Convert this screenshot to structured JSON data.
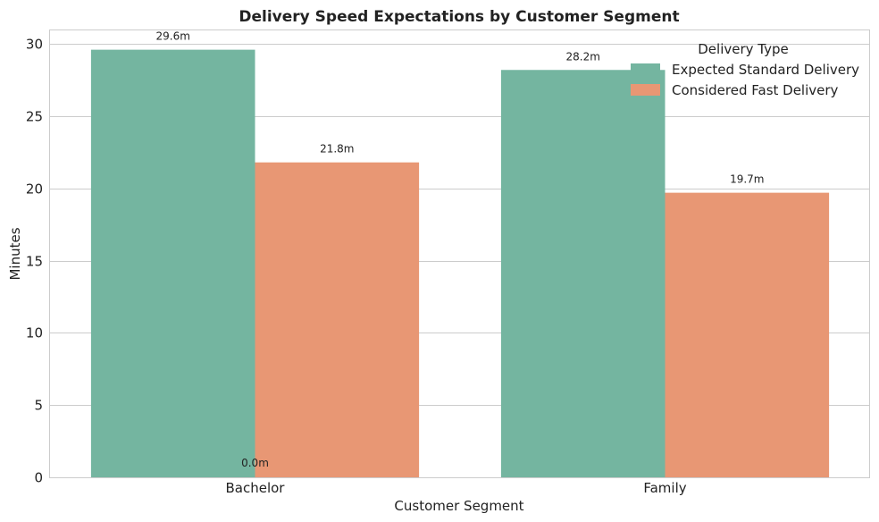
{
  "chart_data": {
    "type": "bar",
    "title": "Delivery Speed Expectations by Customer Segment",
    "xlabel": "Customer Segment",
    "ylabel": "Minutes",
    "categories": [
      "Bachelor",
      "Family"
    ],
    "series": [
      {
        "name": "Expected Standard Delivery",
        "values": [
          29.6,
          28.2
        ],
        "labels": [
          "29.6m",
          "28.2m"
        ],
        "color": "#74b5a0"
      },
      {
        "name": "Considered Fast Delivery",
        "values": [
          21.8,
          19.7
        ],
        "labels": [
          "21.8m",
          "19.7m"
        ],
        "color": "#e89774"
      }
    ],
    "extra_labels": [
      {
        "text": "0.0m"
      }
    ],
    "ylim": [
      0,
      31
    ],
    "yticks": [
      0,
      5,
      10,
      15,
      20,
      25,
      30
    ],
    "grid": "horizontal",
    "legend": {
      "title": "Delivery Type",
      "placement": "top-right"
    }
  }
}
